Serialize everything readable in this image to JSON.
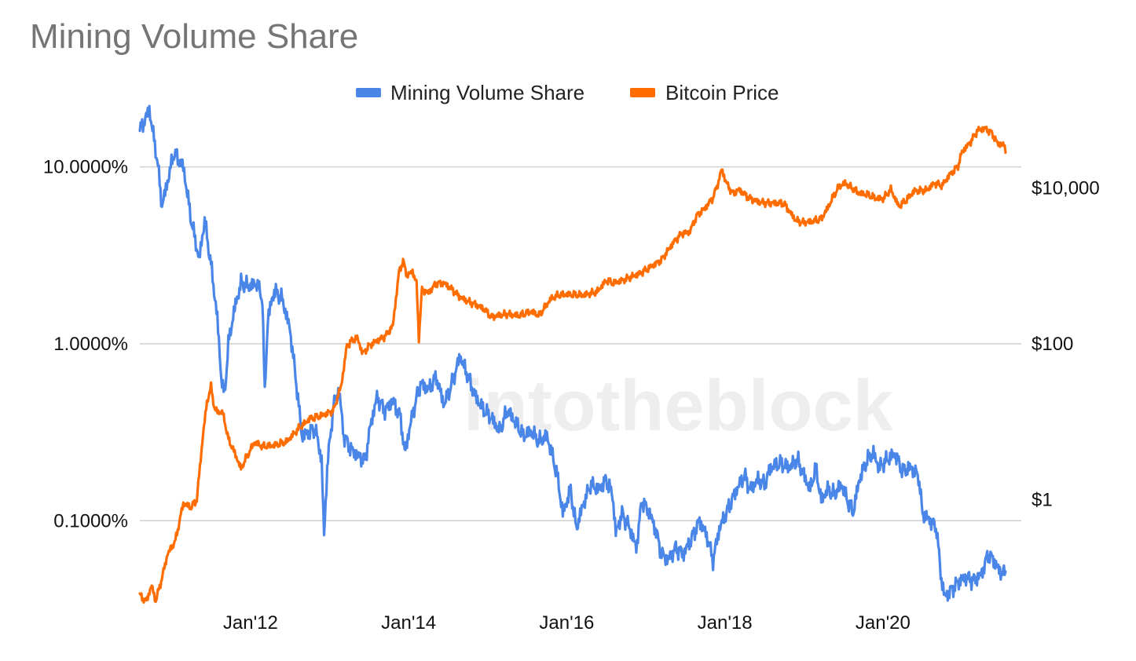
{
  "chart_data": {
    "type": "line",
    "title": "Mining Volume Share",
    "watermark": "intotheblock",
    "legend_position": "top-center",
    "grid": true,
    "left_axis": {
      "scale": "log",
      "range": [
        0.00035,
        0.21
      ],
      "ticks": [
        {
          "value": 0.1,
          "label": "10.0000%"
        },
        {
          "value": 0.01,
          "label": "1.0000%"
        },
        {
          "value": 0.001,
          "label": "0.1000%"
        }
      ]
    },
    "right_axis": {
      "scale": "log",
      "range": [
        0.05,
        100000
      ],
      "ticks": [
        {
          "value": 10000,
          "label": "$10,000"
        },
        {
          "value": 100,
          "label": "$100"
        },
        {
          "value": 1,
          "label": "$1"
        }
      ]
    },
    "x_axis": {
      "range": [
        2010.6,
        2021.75
      ],
      "ticks": [
        {
          "value": 2012.0,
          "label": "Jan'12"
        },
        {
          "value": 2014.0,
          "label": "Jan'14"
        },
        {
          "value": 2016.0,
          "label": "Jan'16"
        },
        {
          "value": 2018.0,
          "label": "Jan'18"
        },
        {
          "value": 2020.0,
          "label": "Jan'20"
        }
      ]
    },
    "series": [
      {
        "name": "Mining Volume Share",
        "color": "#4a86e8",
        "axis": "left",
        "points": [
          [
            2010.6,
            0.16
          ],
          [
            2010.72,
            0.21
          ],
          [
            2010.82,
            0.11
          ],
          [
            2010.88,
            0.06
          ],
          [
            2010.97,
            0.09
          ],
          [
            2011.03,
            0.12
          ],
          [
            2011.15,
            0.1
          ],
          [
            2011.25,
            0.05
          ],
          [
            2011.35,
            0.03
          ],
          [
            2011.42,
            0.05
          ],
          [
            2011.5,
            0.028
          ],
          [
            2011.58,
            0.014
          ],
          [
            2011.63,
            0.0065
          ],
          [
            2011.67,
            0.005
          ],
          [
            2011.72,
            0.01
          ],
          [
            2011.8,
            0.016
          ],
          [
            2011.88,
            0.022
          ],
          [
            2011.98,
            0.021
          ],
          [
            2012.08,
            0.022
          ],
          [
            2012.15,
            0.018
          ],
          [
            2012.18,
            0.0052
          ],
          [
            2012.22,
            0.014
          ],
          [
            2012.3,
            0.02
          ],
          [
            2012.4,
            0.018
          ],
          [
            2012.5,
            0.012
          ],
          [
            2012.58,
            0.006
          ],
          [
            2012.65,
            0.003
          ],
          [
            2012.75,
            0.0032
          ],
          [
            2012.82,
            0.0033
          ],
          [
            2012.9,
            0.0022
          ],
          [
            2012.93,
            0.0008
          ],
          [
            2012.97,
            0.002
          ],
          [
            2013.05,
            0.0045
          ],
          [
            2013.12,
            0.0055
          ],
          [
            2013.18,
            0.003
          ],
          [
            2013.28,
            0.0025
          ],
          [
            2013.38,
            0.0023
          ],
          [
            2013.45,
            0.0022
          ],
          [
            2013.52,
            0.0035
          ],
          [
            2013.6,
            0.005
          ],
          [
            2013.7,
            0.0042
          ],
          [
            2013.8,
            0.0048
          ],
          [
            2013.9,
            0.0038
          ],
          [
            2013.95,
            0.0024
          ],
          [
            2014.05,
            0.004
          ],
          [
            2014.15,
            0.006
          ],
          [
            2014.25,
            0.0055
          ],
          [
            2014.35,
            0.0065
          ],
          [
            2014.45,
            0.0045
          ],
          [
            2014.55,
            0.006
          ],
          [
            2014.65,
            0.0085
          ],
          [
            2014.75,
            0.0065
          ],
          [
            2014.85,
            0.005
          ],
          [
            2014.95,
            0.0042
          ],
          [
            2015.05,
            0.0038
          ],
          [
            2015.15,
            0.0032
          ],
          [
            2015.25,
            0.0042
          ],
          [
            2015.35,
            0.0036
          ],
          [
            2015.45,
            0.003
          ],
          [
            2015.55,
            0.0032
          ],
          [
            2015.65,
            0.0028
          ],
          [
            2015.75,
            0.003
          ],
          [
            2015.8,
            0.0025
          ],
          [
            2015.88,
            0.0018
          ],
          [
            2015.95,
            0.0011
          ],
          [
            2016.05,
            0.0015
          ],
          [
            2016.12,
            0.0009
          ],
          [
            2016.2,
            0.0012
          ],
          [
            2016.3,
            0.0016
          ],
          [
            2016.4,
            0.0015
          ],
          [
            2016.5,
            0.0017
          ],
          [
            2016.58,
            0.0014
          ],
          [
            2016.62,
            0.00085
          ],
          [
            2016.7,
            0.0011
          ],
          [
            2016.8,
            0.0009
          ],
          [
            2016.88,
            0.0007
          ],
          [
            2016.95,
            0.0013
          ],
          [
            2017.05,
            0.0011
          ],
          [
            2017.12,
            0.0009
          ],
          [
            2017.2,
            0.00065
          ],
          [
            2017.28,
            0.0006
          ],
          [
            2017.38,
            0.0007
          ],
          [
            2017.48,
            0.00065
          ],
          [
            2017.58,
            0.0008
          ],
          [
            2017.68,
            0.001
          ],
          [
            2017.78,
            0.0008
          ],
          [
            2017.85,
            0.0006
          ],
          [
            2017.93,
            0.0009
          ],
          [
            2018.05,
            0.0012
          ],
          [
            2018.15,
            0.0015
          ],
          [
            2018.25,
            0.0018
          ],
          [
            2018.32,
            0.0015
          ],
          [
            2018.42,
            0.0017
          ],
          [
            2018.5,
            0.0016
          ],
          [
            2018.58,
            0.002
          ],
          [
            2018.7,
            0.0021
          ],
          [
            2018.82,
            0.002
          ],
          [
            2018.92,
            0.0022
          ],
          [
            2019.0,
            0.0018
          ],
          [
            2019.08,
            0.0015
          ],
          [
            2019.15,
            0.002
          ],
          [
            2019.22,
            0.0013
          ],
          [
            2019.3,
            0.0015
          ],
          [
            2019.38,
            0.0014
          ],
          [
            2019.48,
            0.0016
          ],
          [
            2019.55,
            0.0013
          ],
          [
            2019.62,
            0.0011
          ],
          [
            2019.7,
            0.0017
          ],
          [
            2019.8,
            0.0022
          ],
          [
            2019.88,
            0.0024
          ],
          [
            2019.95,
            0.002
          ],
          [
            2020.05,
            0.0022
          ],
          [
            2020.15,
            0.0024
          ],
          [
            2020.25,
            0.0019
          ],
          [
            2020.35,
            0.002
          ],
          [
            2020.45,
            0.0018
          ],
          [
            2020.5,
            0.0011
          ],
          [
            2020.6,
            0.001
          ],
          [
            2020.68,
            0.0009
          ],
          [
            2020.73,
            0.0005
          ],
          [
            2020.78,
            0.00037
          ],
          [
            2020.85,
            0.0004
          ],
          [
            2020.95,
            0.00045
          ],
          [
            2021.05,
            0.00048
          ],
          [
            2021.15,
            0.00046
          ],
          [
            2021.25,
            0.0005
          ],
          [
            2021.33,
            0.00065
          ],
          [
            2021.4,
            0.0006
          ],
          [
            2021.47,
            0.00052
          ],
          [
            2021.55,
            0.0005
          ]
        ]
      },
      {
        "name": "Bitcoin Price",
        "color": "#ff6d01",
        "axis": "right",
        "points": [
          [
            2010.6,
            0.06
          ],
          [
            2010.68,
            0.05
          ],
          [
            2010.75,
            0.08
          ],
          [
            2010.8,
            0.05
          ],
          [
            2010.88,
            0.1
          ],
          [
            2010.95,
            0.2
          ],
          [
            2011.05,
            0.3
          ],
          [
            2011.15,
            0.9
          ],
          [
            2011.25,
            0.8
          ],
          [
            2011.32,
            1.0
          ],
          [
            2011.4,
            7
          ],
          [
            2011.45,
            18
          ],
          [
            2011.5,
            28
          ],
          [
            2011.55,
            14
          ],
          [
            2011.65,
            13
          ],
          [
            2011.72,
            6
          ],
          [
            2011.8,
            4
          ],
          [
            2011.88,
            2.5
          ],
          [
            2011.95,
            3.5
          ],
          [
            2012.05,
            5.5
          ],
          [
            2012.15,
            4.8
          ],
          [
            2012.3,
            5
          ],
          [
            2012.45,
            5.5
          ],
          [
            2012.6,
            8
          ],
          [
            2012.75,
            11
          ],
          [
            2012.9,
            12
          ],
          [
            2013.05,
            14
          ],
          [
            2013.15,
            30
          ],
          [
            2013.22,
            95
          ],
          [
            2013.28,
            110
          ],
          [
            2013.35,
            120
          ],
          [
            2013.42,
            75
          ],
          [
            2013.5,
            95
          ],
          [
            2013.6,
            110
          ],
          [
            2013.7,
            125
          ],
          [
            2013.8,
            170
          ],
          [
            2013.88,
            850
          ],
          [
            2013.93,
            1150
          ],
          [
            2013.98,
            750
          ],
          [
            2014.05,
            850
          ],
          [
            2014.1,
            600
          ],
          [
            2014.13,
            120
          ],
          [
            2014.17,
            500
          ],
          [
            2014.25,
            450
          ],
          [
            2014.35,
            600
          ],
          [
            2014.45,
            600
          ],
          [
            2014.55,
            500
          ],
          [
            2014.65,
            400
          ],
          [
            2014.75,
            350
          ],
          [
            2014.85,
            320
          ],
          [
            2014.95,
            280
          ],
          [
            2015.05,
            220
          ],
          [
            2015.12,
            230
          ],
          [
            2015.25,
            240
          ],
          [
            2015.4,
            230
          ],
          [
            2015.55,
            260
          ],
          [
            2015.65,
            230
          ],
          [
            2015.8,
            380
          ],
          [
            2015.9,
            420
          ],
          [
            2016.0,
            430
          ],
          [
            2016.2,
            420
          ],
          [
            2016.38,
            460
          ],
          [
            2016.5,
            650
          ],
          [
            2016.6,
            600
          ],
          [
            2016.75,
            680
          ],
          [
            2016.9,
            780
          ],
          [
            2017.05,
            950
          ],
          [
            2017.2,
            1200
          ],
          [
            2017.35,
            2000
          ],
          [
            2017.45,
            2600
          ],
          [
            2017.55,
            2700
          ],
          [
            2017.65,
            4500
          ],
          [
            2017.75,
            5500
          ],
          [
            2017.85,
            7500
          ],
          [
            2017.92,
            12000
          ],
          [
            2017.96,
            17500
          ],
          [
            2018.02,
            11500
          ],
          [
            2018.1,
            8500
          ],
          [
            2018.18,
            9500
          ],
          [
            2018.3,
            7500
          ],
          [
            2018.45,
            6500
          ],
          [
            2018.6,
            6400
          ],
          [
            2018.75,
            6300
          ],
          [
            2018.9,
            3800
          ],
          [
            2018.98,
            3600
          ],
          [
            2019.1,
            3700
          ],
          [
            2019.22,
            4000
          ],
          [
            2019.3,
            5500
          ],
          [
            2019.38,
            8000
          ],
          [
            2019.45,
            10500
          ],
          [
            2019.52,
            11500
          ],
          [
            2019.6,
            10000
          ],
          [
            2019.7,
            8500
          ],
          [
            2019.8,
            8200
          ],
          [
            2019.9,
            7400
          ],
          [
            2020.0,
            7200
          ],
          [
            2020.1,
            9500
          ],
          [
            2020.2,
            5800
          ],
          [
            2020.3,
            7000
          ],
          [
            2020.4,
            9200
          ],
          [
            2020.55,
            9300
          ],
          [
            2020.65,
            11500
          ],
          [
            2020.75,
            10700
          ],
          [
            2020.85,
            15000
          ],
          [
            2020.95,
            19000
          ],
          [
            2021.0,
            29000
          ],
          [
            2021.1,
            38000
          ],
          [
            2021.2,
            55000
          ],
          [
            2021.3,
            58000
          ],
          [
            2021.38,
            50000
          ],
          [
            2021.45,
            37000
          ],
          [
            2021.52,
            36000
          ],
          [
            2021.55,
            32000
          ]
        ]
      }
    ]
  }
}
